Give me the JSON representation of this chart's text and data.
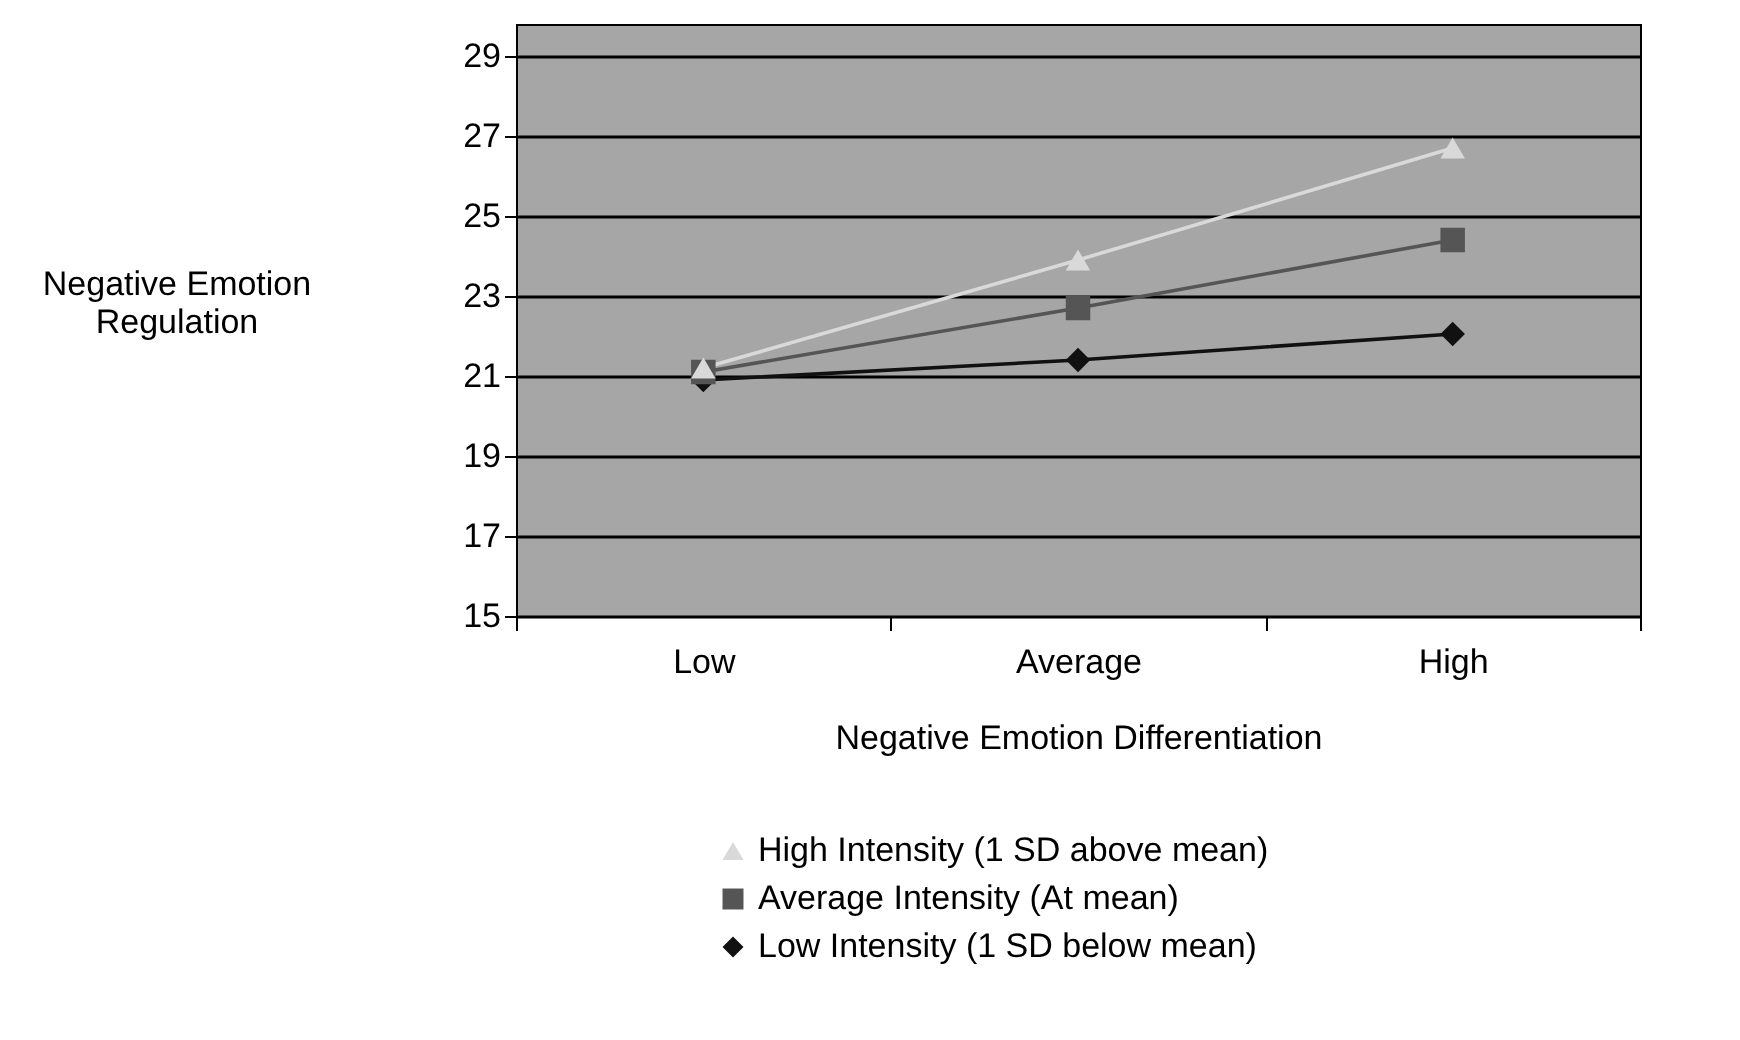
{
  "chart_data": {
    "type": "line",
    "xlabel": "Negative Emotion Differentiation",
    "ylabel": "Negative Emotion Regulation",
    "categories": [
      "Low",
      "Average",
      "High"
    ],
    "series": [
      {
        "name": "High Intensity (1 SD above mean)",
        "color": "#d9d9d9",
        "marker": "triangle",
        "values": [
          21.2,
          23.9,
          26.7
        ]
      },
      {
        "name": "Average Intensity (At mean)",
        "color": "#555555",
        "marker": "square",
        "values": [
          21.1,
          22.7,
          24.4
        ]
      },
      {
        "name": "Low Intensity (1 SD below mean)",
        "color": "#111111",
        "marker": "diamond",
        "values": [
          20.9,
          21.4,
          22.05
        ]
      }
    ],
    "ylim": [
      15,
      29.8
    ],
    "yticks": [
      15,
      17,
      19,
      21,
      23,
      25,
      27,
      29
    ],
    "grid": "y",
    "legend": "bottom",
    "line_style": "solid"
  }
}
